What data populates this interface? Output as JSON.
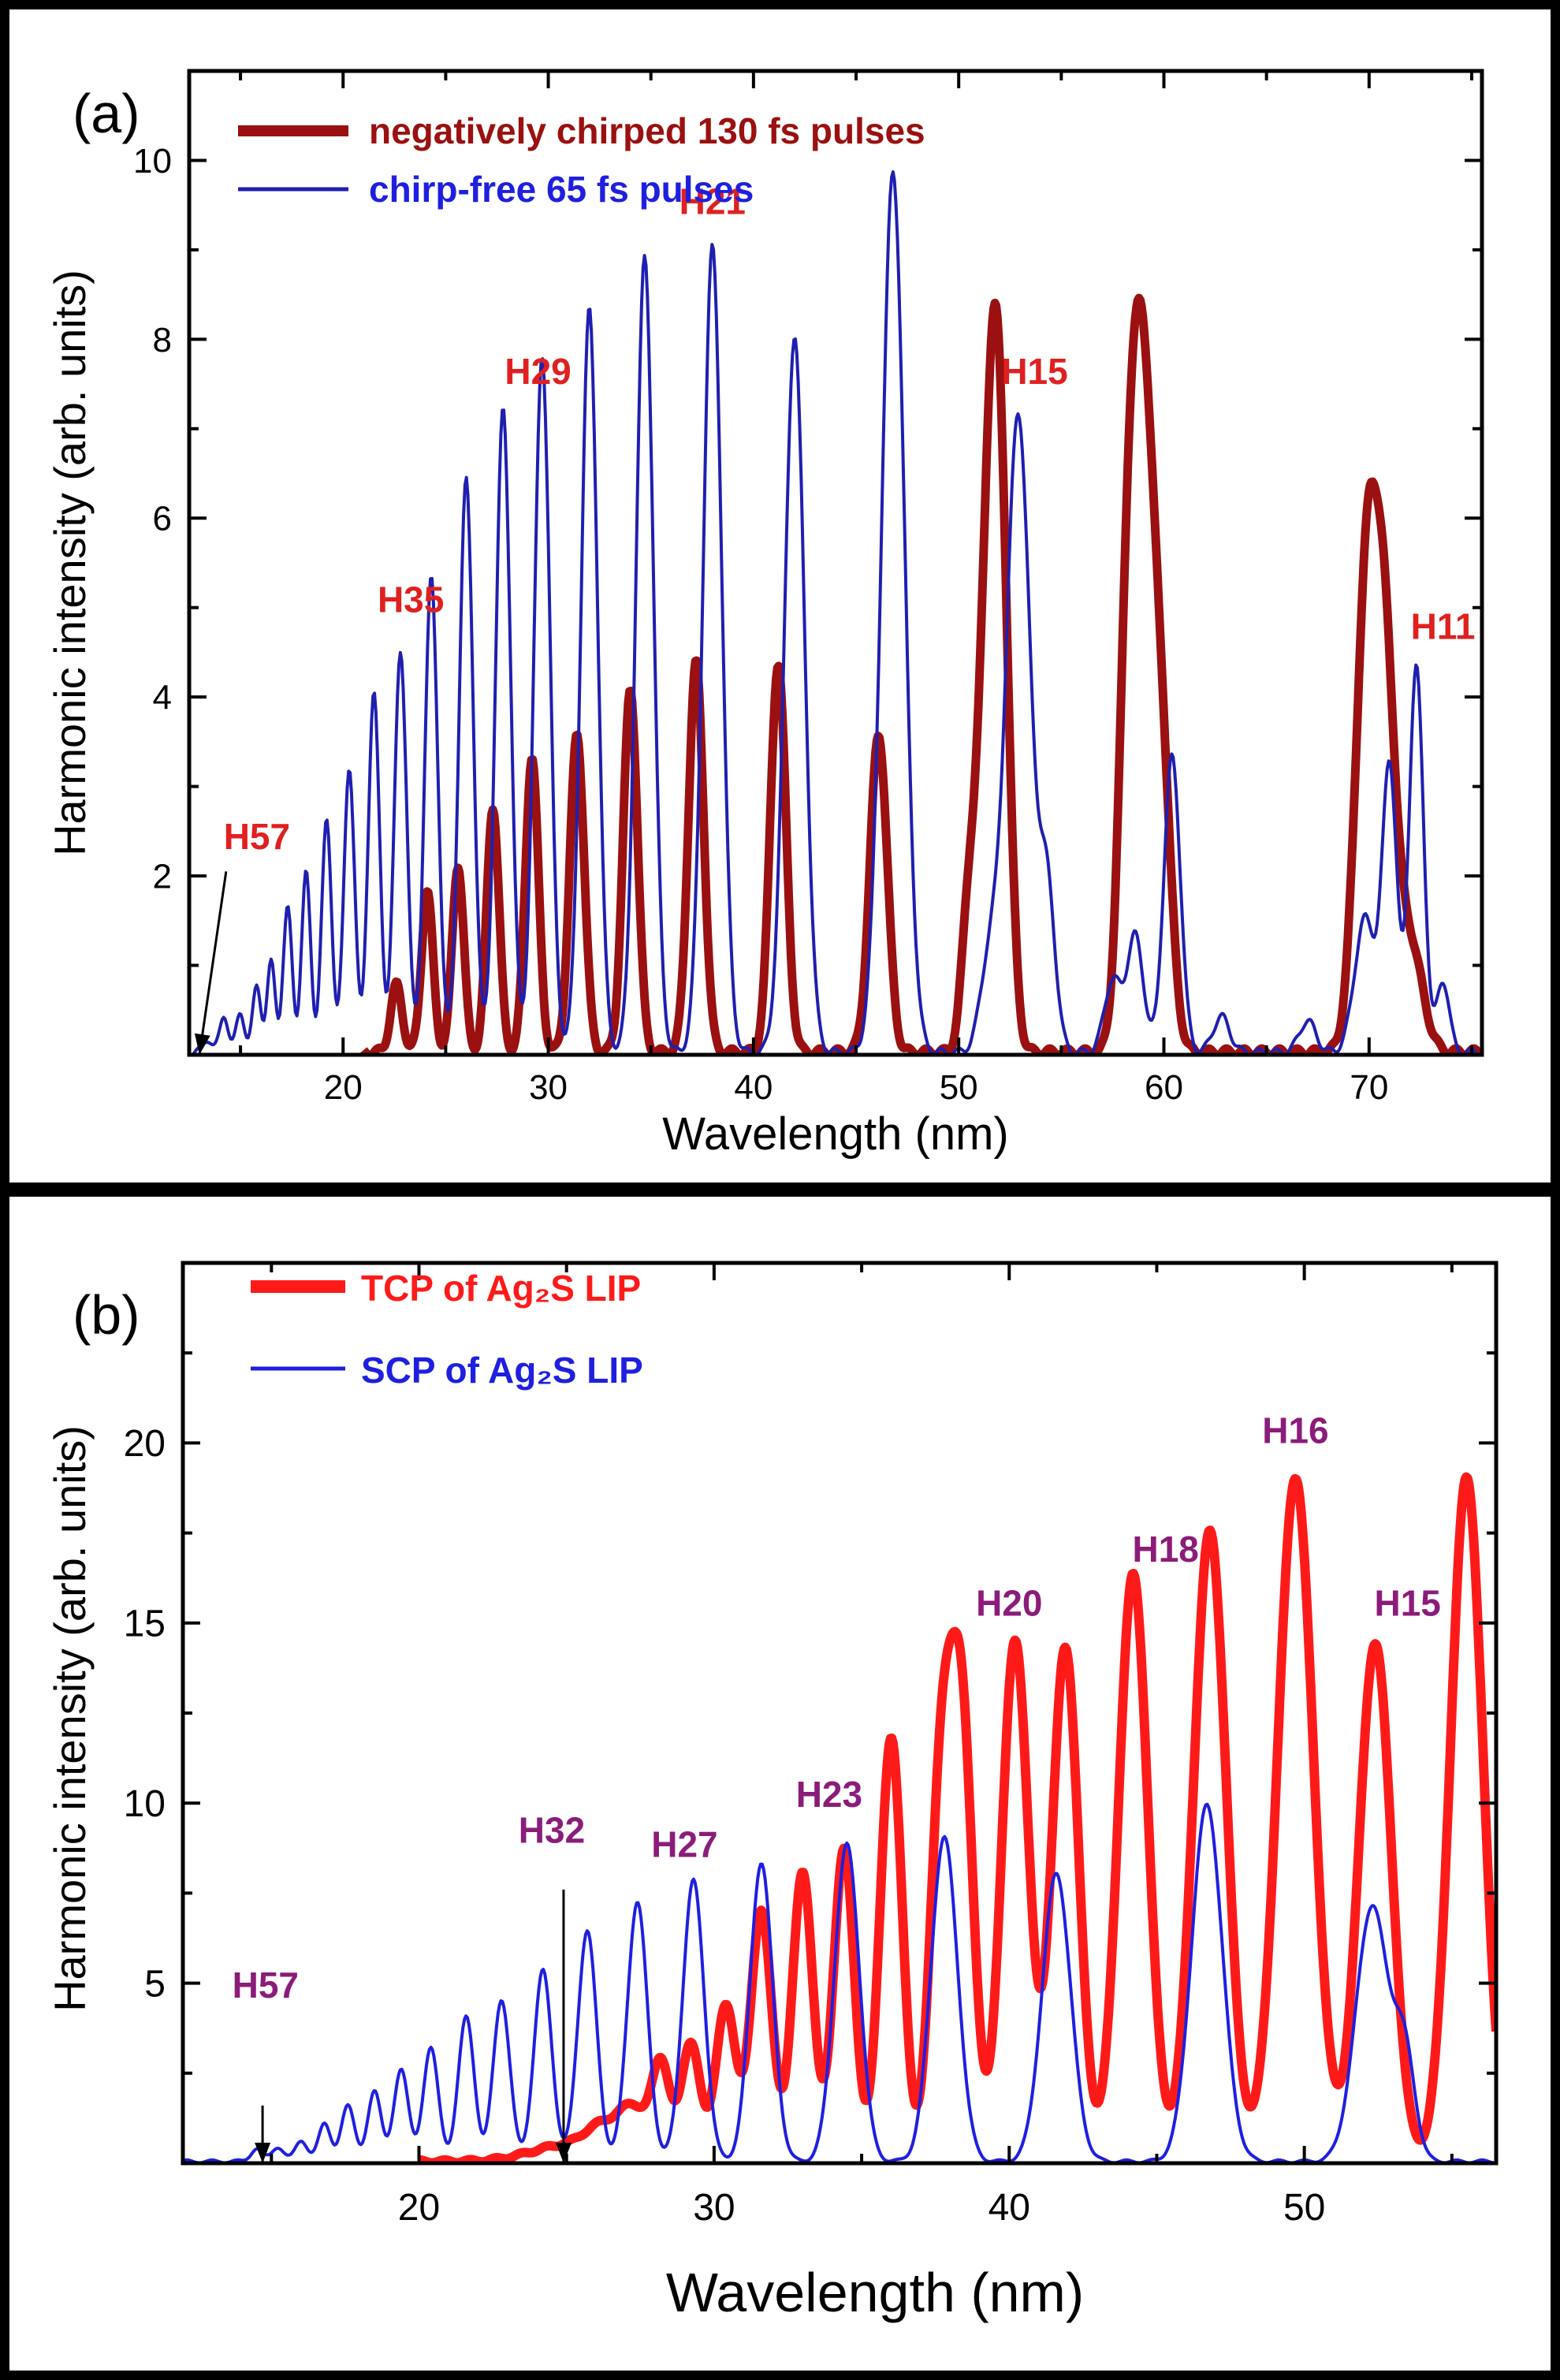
{
  "chart_data": [
    {
      "type": "line",
      "panel_label": "(a)",
      "xlabel": "Wavelength (nm)",
      "ylabel": "Harmonic intensity (arb. units)",
      "xlim": [
        12.5,
        75.5
      ],
      "ylim": [
        0,
        11
      ],
      "xticks": [
        20,
        30,
        40,
        50,
        60,
        70
      ],
      "yticks": [
        2,
        4,
        6,
        8,
        10
      ],
      "series": [
        {
          "name": "negatively chirped 130 fs pulses",
          "color": "#9b1010",
          "width": 11,
          "baseline": 0.03,
          "floor_range": [
            21,
            75.5
          ],
          "peaks": [
            [
              22.6,
              0.75,
              0.28
            ],
            [
              24.1,
              1.8,
              0.28
            ],
            [
              25.6,
              2.1,
              0.28
            ],
            [
              27.3,
              2.75,
              0.3
            ],
            [
              29.2,
              3.3,
              0.32
            ],
            [
              31.4,
              3.55,
              0.35
            ],
            [
              34.0,
              4.05,
              0.35
            ],
            [
              37.2,
              4.35,
              0.37
            ],
            [
              41.2,
              4.35,
              0.38
            ],
            [
              46.1,
              3.55,
              0.42
            ],
            [
              50.5,
              1.55,
              0.35
            ],
            [
              51.4,
              4.5,
              0.45
            ],
            [
              52.0,
              5.85,
              0.45
            ],
            [
              58.3,
              5.25,
              0.45
            ],
            [
              59.0,
              5.6,
              0.45
            ],
            [
              59.8,
              3.6,
              0.5
            ],
            [
              69.9,
              5.3,
              0.55
            ],
            [
              70.8,
              3.7,
              0.5
            ],
            [
              72.0,
              1.2,
              0.6
            ]
          ]
        },
        {
          "name": "chirp-free 65 fs pulses",
          "color": "#1f1fb0",
          "width": 4,
          "baseline": 0.03,
          "floor_range": [
            12.5,
            75.5
          ],
          "peaks": [
            [
              13.4,
              0.15,
              0.2
            ],
            [
              14.2,
              0.42,
              0.2
            ],
            [
              15.0,
              0.45,
              0.2
            ],
            [
              15.8,
              0.75,
              0.2
            ],
            [
              16.5,
              1.0,
              0.2
            ],
            [
              17.3,
              1.6,
              0.22
            ],
            [
              18.2,
              2.0,
              0.22
            ],
            [
              19.2,
              2.6,
              0.24
            ],
            [
              20.3,
              3.2,
              0.26
            ],
            [
              21.5,
              4.0,
              0.28
            ],
            [
              22.8,
              4.5,
              0.3
            ],
            [
              24.3,
              5.3,
              0.32
            ],
            [
              26.0,
              6.4,
              0.34
            ],
            [
              27.8,
              7.2,
              0.36
            ],
            [
              29.7,
              7.8,
              0.38
            ],
            [
              32.0,
              8.3,
              0.4
            ],
            [
              34.7,
              8.9,
              0.42
            ],
            [
              38.0,
              9.0,
              0.45
            ],
            [
              42.0,
              8.0,
              0.48
            ],
            [
              46.8,
              9.85,
              0.55
            ],
            [
              51.5,
              1.0,
              0.45
            ],
            [
              52.9,
              7.15,
              0.58
            ],
            [
              54.3,
              1.8,
              0.4
            ],
            [
              57.5,
              0.8,
              0.4
            ],
            [
              58.6,
              1.3,
              0.4
            ],
            [
              60.4,
              3.3,
              0.4
            ],
            [
              62.8,
              0.4,
              0.4
            ],
            [
              67.0,
              0.35,
              0.4
            ],
            [
              69.8,
              1.5,
              0.5
            ],
            [
              71.0,
              3.2,
              0.35
            ],
            [
              72.3,
              4.3,
              0.35
            ],
            [
              73.6,
              0.8,
              0.3
            ]
          ]
        }
      ],
      "annotations": [
        {
          "text": "H57",
          "x": 15.8,
          "y": 2.3,
          "color": "#e02020"
        },
        {
          "text": "H35",
          "x": 23.3,
          "y": 4.95,
          "color": "#e02020"
        },
        {
          "text": "H29",
          "x": 29.5,
          "y": 7.5,
          "color": "#e02020"
        },
        {
          "text": "H21",
          "x": 38.0,
          "y": 9.4,
          "color": "#e02020"
        },
        {
          "text": "H15",
          "x": 53.7,
          "y": 7.5,
          "color": "#e02020"
        },
        {
          "text": "H11",
          "x": 73.6,
          "y": 4.65,
          "color": "#e02020"
        }
      ],
      "arrow": {
        "from": [
          14.3,
          2.05
        ],
        "to": [
          13.0,
          0.0
        ]
      }
    },
    {
      "type": "line",
      "panel_label": "(b)",
      "xlabel": "Wavelength (nm)",
      "ylabel": "Harmonic intensity (arb. units)",
      "xlim": [
        12.0,
        56.5
      ],
      "ylim": [
        0,
        25
      ],
      "xticks": [
        20,
        30,
        40,
        50
      ],
      "yticks": [
        5,
        10,
        15,
        20
      ],
      "series": [
        {
          "name": "TCP of Ag₂S LIP",
          "color": "#ff1a1a",
          "width": 12,
          "baseline": 0.05,
          "floor_range": [
            20,
            56.5
          ],
          "peaks": [
            [
              25.0,
              0.45,
              1.2
            ],
            [
              26.3,
              0.8,
              0.6
            ],
            [
              27.3,
              1.3,
              0.45
            ],
            [
              28.2,
              2.7,
              0.3
            ],
            [
              29.2,
              3.3,
              0.32
            ],
            [
              30.4,
              4.3,
              0.35
            ],
            [
              31.6,
              7.0,
              0.35
            ],
            [
              33.0,
              8.0,
              0.35
            ],
            [
              34.4,
              8.7,
              0.35
            ],
            [
              36.0,
              11.8,
              0.37
            ],
            [
              37.7,
              10.5,
              0.37
            ],
            [
              38.4,
              12.0,
              0.38
            ],
            [
              40.2,
              14.5,
              0.45
            ],
            [
              41.9,
              14.3,
              0.45
            ],
            [
              44.2,
              16.3,
              0.5
            ],
            [
              46.8,
              17.5,
              0.55
            ],
            [
              49.7,
              19.0,
              0.6
            ],
            [
              52.4,
              14.4,
              0.55
            ],
            [
              55.5,
              19.0,
              0.55
            ]
          ]
        },
        {
          "name": "SCP of Ag₂S LIP",
          "color": "#1f1fe0",
          "width": 4,
          "baseline": 0.05,
          "floor_range": [
            12.0,
            56.5
          ],
          "peaks": [
            [
              14.5,
              0.35,
              0.2
            ],
            [
              15.2,
              0.4,
              0.2
            ],
            [
              16.0,
              0.6,
              0.2
            ],
            [
              16.8,
              1.1,
              0.2
            ],
            [
              17.6,
              1.6,
              0.22
            ],
            [
              18.5,
              2.0,
              0.22
            ],
            [
              19.4,
              2.6,
              0.24
            ],
            [
              20.4,
              3.2,
              0.25
            ],
            [
              21.6,
              4.0,
              0.27
            ],
            [
              22.8,
              4.5,
              0.28
            ],
            [
              24.2,
              5.3,
              0.3
            ],
            [
              25.7,
              6.4,
              0.32
            ],
            [
              27.4,
              7.2,
              0.34
            ],
            [
              29.3,
              7.8,
              0.36
            ],
            [
              31.6,
              8.3,
              0.38
            ],
            [
              34.5,
              8.8,
              0.42
            ],
            [
              37.8,
              9.0,
              0.45
            ],
            [
              41.6,
              8.0,
              0.48
            ],
            [
              46.7,
              9.9,
              0.52
            ],
            [
              52.3,
              7.1,
              0.55
            ],
            [
              53.4,
              2.8,
              0.35
            ]
          ]
        }
      ],
      "annotations": [
        {
          "text": "H57",
          "x": 14.8,
          "y": 4.6,
          "color": "#8b1c7a"
        },
        {
          "text": "H32",
          "x": 24.5,
          "y": 8.9,
          "color": "#8b1c7a"
        },
        {
          "text": "H27",
          "x": 29.0,
          "y": 8.5,
          "color": "#8b1c7a"
        },
        {
          "text": "H23",
          "x": 33.9,
          "y": 9.9,
          "color": "#8b1c7a"
        },
        {
          "text": "H20",
          "x": 40.0,
          "y": 15.2,
          "color": "#8b1c7a"
        },
        {
          "text": "H18",
          "x": 45.3,
          "y": 16.7,
          "color": "#8b1c7a"
        },
        {
          "text": "H16",
          "x": 49.7,
          "y": 20.0,
          "color": "#8b1c7a"
        },
        {
          "text": "H15",
          "x": 53.5,
          "y": 15.2,
          "color": "#8b1c7a"
        }
      ],
      "arrows": [
        {
          "from": [
            14.7,
            1.6
          ],
          "to": [
            14.7,
            0.0
          ]
        },
        {
          "from": [
            24.9,
            7.6
          ],
          "to": [
            24.9,
            0.0
          ]
        }
      ]
    }
  ]
}
